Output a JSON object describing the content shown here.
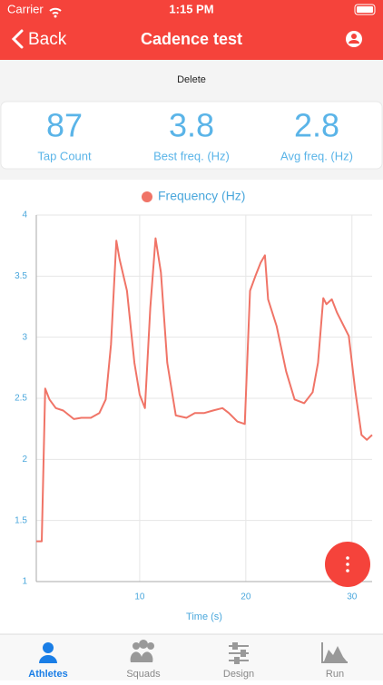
{
  "status_bar": {
    "carrier": "Carrier",
    "time": "1:15 PM"
  },
  "nav": {
    "back": "Back",
    "title": "Cadence test"
  },
  "toolbar": {
    "delete": "Delete"
  },
  "stats": [
    {
      "value": 87,
      "label": "Tap Count"
    },
    {
      "value": 3.8,
      "label": "Best freq. (Hz)"
    },
    {
      "value": 2.8,
      "label": "Avg freq. (Hz)"
    }
  ],
  "chart_data": {
    "type": "line",
    "x_label": "Time (s)",
    "x": [
      0.26,
      0.77,
      1.1,
      1.5,
      2.1,
      2.8,
      3.8,
      4.5,
      5.4,
      6.2,
      6.8,
      7.3,
      7.8,
      8.1,
      8.8,
      9.5,
      10.0,
      10.5,
      11.0,
      11.5,
      12.0,
      12.6,
      13.4,
      14.4,
      15.2,
      16.1,
      16.9,
      17.8,
      18.4,
      19.2,
      19.9,
      20.4,
      20.9,
      21.4,
      21.8,
      22.1,
      22.9,
      23.8,
      24.6,
      25.5,
      26.3,
      26.8,
      27.3,
      27.6,
      28.1,
      28.6,
      29.7,
      30.3,
      30.9,
      31.4,
      31.9
    ],
    "series": [
      {
        "name": "Frequency (Hz)",
        "color": "#f07467",
        "values": [
          1.33,
          1.33,
          2.58,
          2.49,
          2.42,
          2.4,
          2.33,
          2.34,
          2.34,
          2.38,
          2.49,
          2.94,
          3.79,
          3.64,
          3.38,
          2.79,
          2.53,
          2.42,
          3.24,
          3.81,
          3.53,
          2.79,
          2.36,
          2.34,
          2.38,
          2.38,
          2.4,
          2.42,
          2.38,
          2.31,
          2.29,
          3.38,
          3.5,
          3.61,
          3.67,
          3.31,
          3.09,
          2.72,
          2.49,
          2.46,
          2.55,
          2.79,
          3.32,
          3.27,
          3.31,
          3.2,
          3.01,
          2.57,
          2.2,
          2.16,
          2.2
        ]
      }
    ],
    "xlim": [
      0.26,
      31.9
    ],
    "ylim": [
      1,
      4
    ],
    "xticks": [
      10,
      20,
      30
    ],
    "yticks": [
      1,
      1.5,
      2,
      2.5,
      3,
      3.5,
      4
    ],
    "grid": true
  },
  "tabs": [
    "Athletes",
    "Squads",
    "Design",
    "Run"
  ]
}
